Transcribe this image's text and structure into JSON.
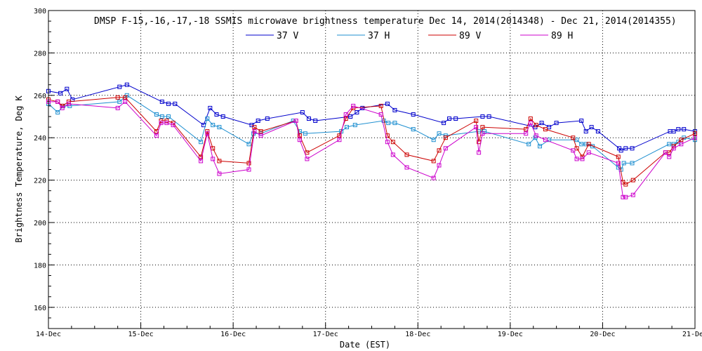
{
  "chart_data": {
    "type": "line",
    "title": "DMSP F-15,-16,-17,-18 SSMIS microwave brightness temperature Dec 14, 2014(2014348) - Dec 21, 2014(2014355)",
    "xlabel": "Date (EST)",
    "ylabel": "Brightness Temperature, Deg K",
    "xlim": [
      0,
      7
    ],
    "ylim": [
      150,
      300
    ],
    "x_ticks": [
      "14-Dec",
      "15-Dec",
      "16-Dec",
      "17-Dec",
      "18-Dec",
      "19-Dec",
      "20-Dec",
      "21-Dec"
    ],
    "y_ticks": [
      160,
      180,
      200,
      220,
      240,
      260,
      280,
      300
    ],
    "grid": true,
    "legend_placement": "top-center",
    "series": [
      {
        "name": "37 V",
        "color": "#0000cc",
        "x": [
          0.0,
          0.13,
          0.2,
          0.26,
          0.77,
          0.85,
          1.23,
          1.3,
          1.37,
          1.68,
          1.75,
          1.82,
          1.89,
          2.2,
          2.27,
          2.37,
          2.75,
          2.82,
          2.89,
          3.27,
          3.34,
          3.4,
          3.67,
          3.75,
          3.95,
          4.28,
          4.34,
          4.41,
          4.7,
          4.77,
          5.27,
          5.34,
          5.42,
          5.5,
          5.77,
          5.82,
          5.88,
          5.95,
          6.18,
          6.2,
          6.25,
          6.32,
          6.73,
          6.77,
          6.82,
          6.88,
          7.0
        ],
        "y": [
          262,
          261,
          263,
          258,
          264,
          265,
          257,
          256,
          256,
          246,
          254,
          251,
          250,
          246,
          248,
          249,
          252,
          249,
          248,
          250,
          252,
          254,
          256,
          253,
          251,
          247,
          249,
          249,
          250,
          250,
          245,
          247,
          245,
          247,
          248,
          243,
          245,
          243,
          235,
          234,
          235,
          235,
          243,
          243,
          244,
          244,
          243
        ]
      },
      {
        "name": "37 H",
        "color": "#1e8fd0",
        "x": [
          0.0,
          0.1,
          0.16,
          0.23,
          0.77,
          0.85,
          1.17,
          1.23,
          1.3,
          1.65,
          1.72,
          1.78,
          1.85,
          2.17,
          2.22,
          2.3,
          2.65,
          2.72,
          2.78,
          3.17,
          3.23,
          3.32,
          3.63,
          3.68,
          3.75,
          3.95,
          4.17,
          4.23,
          4.3,
          4.66,
          4.72,
          5.2,
          5.27,
          5.32,
          5.42,
          5.72,
          5.77,
          5.82,
          5.89,
          6.17,
          6.2,
          6.23,
          6.32,
          6.72,
          6.77,
          6.82,
          6.88,
          7.0
        ],
        "y": [
          256,
          252,
          255,
          255,
          257,
          260,
          251,
          250,
          250,
          238,
          249,
          246,
          245,
          237,
          242,
          242,
          248,
          243,
          242,
          243,
          245,
          246,
          248,
          247,
          247,
          244,
          239,
          242,
          241,
          243,
          243,
          237,
          240,
          236,
          239,
          239,
          237,
          237,
          236,
          226,
          225,
          228,
          228,
          237,
          237,
          238,
          240,
          239
        ]
      },
      {
        "name": "89 V",
        "color": "#cc0000",
        "x": [
          0.0,
          0.1,
          0.15,
          0.22,
          0.75,
          0.83,
          1.17,
          1.22,
          1.28,
          1.35,
          1.65,
          1.72,
          1.78,
          1.85,
          2.17,
          2.23,
          2.3,
          2.68,
          2.72,
          2.8,
          3.15,
          3.22,
          3.3,
          3.6,
          3.67,
          3.73,
          3.88,
          4.17,
          4.23,
          4.3,
          4.63,
          4.66,
          4.7,
          5.17,
          5.22,
          5.28,
          5.38,
          5.68,
          5.72,
          5.78,
          5.85,
          6.17,
          6.22,
          6.25,
          6.33,
          6.68,
          6.72,
          6.77,
          6.85,
          7.0
        ],
        "y": [
          258,
          257,
          255,
          257,
          259,
          259,
          243,
          248,
          248,
          247,
          231,
          243,
          235,
          229,
          228,
          245,
          243,
          248,
          241,
          233,
          241,
          249,
          254,
          255,
          241,
          238,
          232,
          229,
          234,
          240,
          248,
          238,
          245,
          244,
          249,
          246,
          244,
          240,
          235,
          231,
          237,
          231,
          219,
          218,
          220,
          233,
          233,
          236,
          239,
          242
        ]
      },
      {
        "name": "89 H",
        "color": "#cc00cc",
        "x": [
          0.0,
          0.1,
          0.15,
          0.22,
          0.75,
          0.83,
          1.17,
          1.22,
          1.28,
          1.35,
          1.65,
          1.72,
          1.78,
          1.85,
          2.17,
          2.23,
          2.3,
          2.68,
          2.72,
          2.8,
          3.15,
          3.22,
          3.3,
          3.6,
          3.67,
          3.73,
          3.88,
          4.17,
          4.23,
          4.3,
          4.63,
          4.66,
          4.7,
          5.17,
          5.22,
          5.28,
          5.38,
          5.68,
          5.72,
          5.78,
          5.85,
          6.17,
          6.22,
          6.25,
          6.33,
          6.68,
          6.72,
          6.77,
          6.85,
          7.0
        ],
        "y": [
          257,
          257,
          254,
          256,
          254,
          257,
          241,
          247,
          247,
          246,
          229,
          242,
          230,
          223,
          225,
          243,
          241,
          248,
          239,
          230,
          239,
          251,
          255,
          251,
          238,
          232,
          226,
          221,
          227,
          235,
          245,
          233,
          242,
          242,
          247,
          241,
          239,
          234,
          230,
          230,
          233,
          228,
          212,
          212,
          213,
          233,
          231,
          235,
          237,
          240
        ]
      }
    ]
  }
}
